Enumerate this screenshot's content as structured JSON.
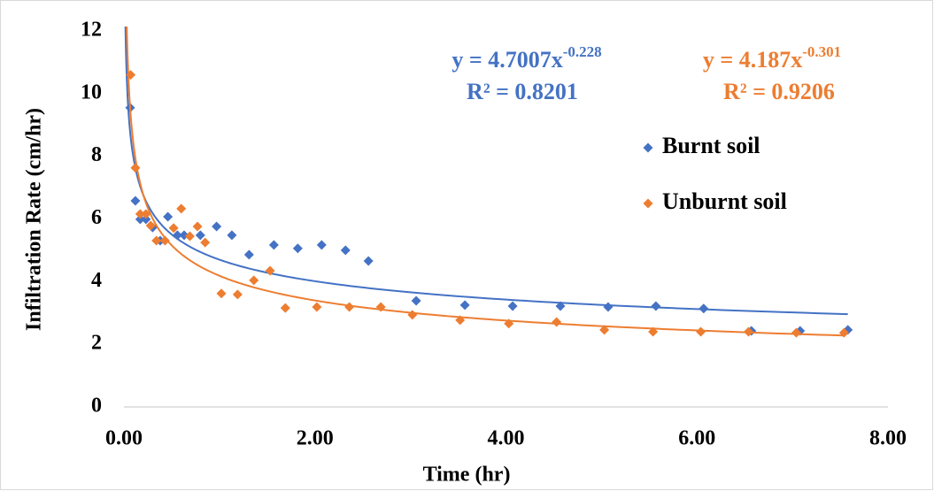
{
  "chart_data": {
    "type": "scatter",
    "xlabel": "Time (hr)",
    "ylabel": "Infiltration Rate (cm/hr)",
    "xlim": [
      0,
      8
    ],
    "ylim": [
      0,
      12
    ],
    "xticks": [
      {
        "value": 0,
        "label": "0.00"
      },
      {
        "value": 2,
        "label": "2.00"
      },
      {
        "value": 4,
        "label": "4.00"
      },
      {
        "value": 6,
        "label": "6.00"
      },
      {
        "value": 8,
        "label": "8.00"
      }
    ],
    "yticks": [
      0,
      2,
      4,
      6,
      8,
      10,
      12
    ],
    "grid": false,
    "legend": "right",
    "series": [
      {
        "name": "Burnt soil",
        "color": "#4472c4",
        "x": [
          0.065,
          0.12,
          0.17,
          0.23,
          0.3,
          0.38,
          0.46,
          0.56,
          0.63,
          0.8,
          0.97,
          1.13,
          1.31,
          1.57,
          1.82,
          2.07,
          2.32,
          2.56,
          3.06,
          3.57,
          4.07,
          4.57,
          5.07,
          5.57,
          6.07,
          6.57,
          7.08,
          7.58
        ],
        "values": [
          9.55,
          6.58,
          5.99,
          5.99,
          5.73,
          5.31,
          6.07,
          5.48,
          5.48,
          5.48,
          5.76,
          5.48,
          4.86,
          5.17,
          5.06,
          5.17,
          5.0,
          4.66,
          3.39,
          3.25,
          3.22,
          3.22,
          3.19,
          3.22,
          3.14,
          2.43,
          2.43,
          2.46
        ],
        "trendline": {
          "coefficient": 4.7007,
          "exponent": -0.228,
          "r2": 0.8201,
          "label_base": "y = 4.7007x",
          "label_exponent": "-0.228",
          "label_r2": "R² = 0.8201"
        }
      },
      {
        "name": "Unburnt soil",
        "color": "#ed7d31",
        "x": [
          0.07,
          0.12,
          0.17,
          0.23,
          0.28,
          0.34,
          0.43,
          0.52,
          0.6,
          0.69,
          0.77,
          0.85,
          1.02,
          1.19,
          1.36,
          1.53,
          1.69,
          2.02,
          2.36,
          2.69,
          3.02,
          3.52,
          4.03,
          4.53,
          5.03,
          5.54,
          6.04,
          6.54,
          7.04,
          7.54
        ],
        "values": [
          10.6,
          7.63,
          6.16,
          6.16,
          5.79,
          5.31,
          5.31,
          5.71,
          6.33,
          5.45,
          5.76,
          5.25,
          3.62,
          3.59,
          4.04,
          4.35,
          3.16,
          3.19,
          3.19,
          3.19,
          2.94,
          2.77,
          2.66,
          2.71,
          2.46,
          2.4,
          2.4,
          2.4,
          2.37,
          2.37
        ],
        "trendline": {
          "coefficient": 4.187,
          "exponent": -0.301,
          "r2": 0.9206,
          "label_base": "y = 4.187x",
          "label_exponent": "-0.301",
          "label_r2": "R² = 0.9206"
        }
      }
    ]
  }
}
